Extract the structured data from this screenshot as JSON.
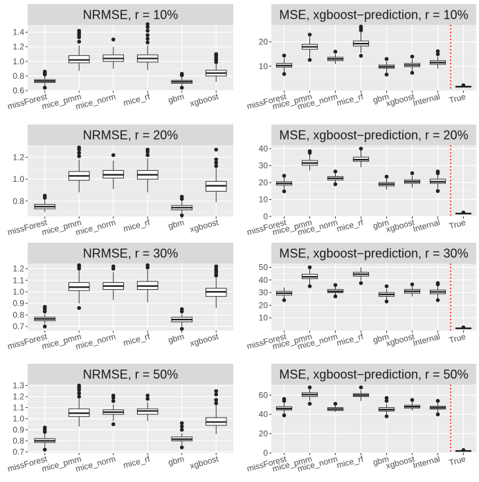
{
  "chart_data": [
    {
      "type": "boxplot",
      "title": "NRMSE, r = 10%",
      "categories": [
        "missForest",
        "mice_pmm",
        "mice_norm",
        "mice_rf",
        "gbm",
        "xgboost"
      ],
      "ylim": [
        0.6,
        1.5
      ],
      "yticks": [
        0.6,
        0.8,
        1.0,
        1.2,
        1.4
      ],
      "ytick_labels": [
        "0.6",
        "0.8",
        "1.0",
        "1.2",
        "1.4"
      ],
      "boxes": [
        {
          "q1": 0.71,
          "median": 0.73,
          "q3": 0.75,
          "lo": 0.66,
          "hi": 0.8,
          "outliers": [
            0.64,
            0.82,
            0.84,
            0.86
          ]
        },
        {
          "q1": 0.98,
          "median": 1.02,
          "q3": 1.08,
          "lo": 0.87,
          "hi": 1.22,
          "outliers": [
            1.27,
            1.33,
            1.36,
            1.39,
            1.42
          ]
        },
        {
          "q1": 1.0,
          "median": 1.04,
          "q3": 1.09,
          "lo": 0.9,
          "hi": 1.2,
          "outliers": [
            1.3
          ]
        },
        {
          "q1": 0.99,
          "median": 1.04,
          "q3": 1.09,
          "lo": 0.88,
          "hi": 1.22,
          "outliers": [
            1.26,
            1.31,
            1.36,
            1.42,
            1.47,
            1.51
          ]
        },
        {
          "q1": 0.7,
          "median": 0.72,
          "q3": 0.74,
          "lo": 0.67,
          "hi": 0.78,
          "outliers": [
            0.64,
            0.81,
            0.83
          ]
        },
        {
          "q1": 0.8,
          "median": 0.84,
          "q3": 0.88,
          "lo": 0.72,
          "hi": 0.97,
          "outliers": [
            0.99,
            1.02,
            1.05,
            1.08,
            1.1
          ]
        }
      ]
    },
    {
      "type": "boxplot",
      "title": "MSE, xgboost−prediction, r = 10%",
      "categories": [
        "missForest",
        "mice_pmm",
        "mice_norm",
        "mice_rf",
        "gbm",
        "xgboost",
        "Internal",
        "True"
      ],
      "ylim": [
        0,
        27
      ],
      "yticks": [
        10,
        20
      ],
      "ytick_labels": [
        "10",
        "20"
      ],
      "vline_after_category": "Internal",
      "boxes": [
        {
          "q1": 9.6,
          "median": 10.3,
          "q3": 11.2,
          "lo": 7.5,
          "hi": 13.3,
          "outliers": [
            6.8,
            14.4
          ]
        },
        {
          "q1": 17.0,
          "median": 18.0,
          "q3": 19.0,
          "lo": 13.5,
          "hi": 22.0,
          "outliers": [
            12.6,
            23.0
          ]
        },
        {
          "q1": 12.3,
          "median": 13.0,
          "q3": 13.7,
          "lo": 11.0,
          "hi": 15.0,
          "outliers": [
            16.0
          ]
        },
        {
          "q1": 18.3,
          "median": 19.3,
          "q3": 20.4,
          "lo": 15.5,
          "hi": 24.0,
          "outliers": [
            14.3,
            24.8,
            25.6,
            26.3
          ]
        },
        {
          "q1": 9.2,
          "median": 9.8,
          "q3": 10.5,
          "lo": 7.5,
          "hi": 12.0,
          "outliers": [
            6.6,
            13.0
          ]
        },
        {
          "q1": 9.8,
          "median": 10.5,
          "q3": 11.2,
          "lo": 8.0,
          "hi": 13.0,
          "outliers": [
            7.3,
            14.0
          ]
        },
        {
          "q1": 10.8,
          "median": 11.5,
          "q3": 12.3,
          "lo": 9.0,
          "hi": 14.0,
          "outliers": [
            15.0,
            16.2
          ]
        },
        {
          "q1": 1.5,
          "median": 1.6,
          "q3": 1.8,
          "lo": 1.4,
          "hi": 2.0,
          "outliers": [
            2.2
          ]
        }
      ]
    },
    {
      "type": "boxplot",
      "title": "NRMSE, r = 20%",
      "categories": [
        "missForest",
        "mice_pmm",
        "mice_norm",
        "mice_rf",
        "gbm",
        "xgboost"
      ],
      "ylim": [
        0.66,
        1.31
      ],
      "yticks": [
        0.8,
        1.0,
        1.2
      ],
      "ytick_labels": [
        "0.8",
        "1.0",
        "1.2"
      ],
      "boxes": [
        {
          "q1": 0.73,
          "median": 0.75,
          "q3": 0.77,
          "lo": 0.7,
          "hi": 0.81,
          "outliers": [
            0.83,
            0.85
          ]
        },
        {
          "q1": 0.99,
          "median": 1.03,
          "q3": 1.07,
          "lo": 0.88,
          "hi": 1.18,
          "outliers": [
            1.21,
            1.24,
            1.27,
            1.29
          ]
        },
        {
          "q1": 1.01,
          "median": 1.04,
          "q3": 1.08,
          "lo": 0.91,
          "hi": 1.17,
          "outliers": [
            1.22
          ]
        },
        {
          "q1": 1.0,
          "median": 1.04,
          "q3": 1.08,
          "lo": 0.88,
          "hi": 1.19,
          "outliers": [
            1.22,
            1.25,
            1.27
          ]
        },
        {
          "q1": 0.72,
          "median": 0.74,
          "q3": 0.76,
          "lo": 0.69,
          "hi": 0.8,
          "outliers": [
            0.67,
            0.82,
            0.84
          ]
        },
        {
          "q1": 0.89,
          "median": 0.94,
          "q3": 0.98,
          "lo": 0.79,
          "hi": 1.1,
          "outliers": [
            1.12,
            1.15,
            1.18,
            1.27
          ]
        }
      ]
    },
    {
      "type": "boxplot",
      "title": "MSE, xgboost−prediction, r = 20%",
      "categories": [
        "missForest",
        "mice_pmm",
        "mice_norm",
        "mice_rf",
        "gbm",
        "xgboost",
        "Internal",
        "True"
      ],
      "ylim": [
        0,
        42
      ],
      "yticks": [
        0,
        10,
        20,
        30,
        40
      ],
      "ytick_labels": [
        "0",
        "10",
        "20",
        "30",
        "40"
      ],
      "vline_after_category": "Internal",
      "boxes": [
        {
          "q1": 18.5,
          "median": 19.5,
          "q3": 20.5,
          "lo": 16.0,
          "hi": 23.0,
          "outliers": [
            14.8,
            24.0
          ]
        },
        {
          "q1": 30.2,
          "median": 31.5,
          "q3": 33.0,
          "lo": 27.0,
          "hi": 36.5,
          "outliers": [
            37.5,
            38.5
          ]
        },
        {
          "q1": 21.5,
          "median": 22.5,
          "q3": 23.5,
          "lo": 20.0,
          "hi": 25.5,
          "outliers": [
            19.0,
            26.5
          ]
        },
        {
          "q1": 32.5,
          "median": 33.5,
          "q3": 35.0,
          "lo": 29.0,
          "hi": 39.0,
          "outliers": [
            40.0
          ]
        },
        {
          "q1": 18.0,
          "median": 19.0,
          "q3": 20.0,
          "lo": 16.0,
          "hi": 22.5,
          "outliers": [
            23.5
          ]
        },
        {
          "q1": 19.5,
          "median": 20.5,
          "q3": 21.5,
          "lo": 17.0,
          "hi": 24.0,
          "outliers": [
            25.5
          ]
        },
        {
          "q1": 19.5,
          "median": 20.5,
          "q3": 22.0,
          "lo": 16.5,
          "hi": 24.5,
          "outliers": [
            15.0,
            25.5,
            26.5
          ]
        },
        {
          "q1": 1.5,
          "median": 1.7,
          "q3": 1.9,
          "lo": 1.3,
          "hi": 2.1,
          "outliers": [
            2.3
          ]
        }
      ]
    },
    {
      "type": "boxplot",
      "title": "NRMSE, r = 30%",
      "categories": [
        "missForest",
        "mice_pmm",
        "mice_norm",
        "mice_rf",
        "gbm",
        "xgboost"
      ],
      "ylim": [
        0.665,
        1.245
      ],
      "yticks": [
        0.7,
        0.8,
        0.9,
        1.0,
        1.1,
        1.2
      ],
      "ytick_labels": [
        "0.7",
        "0.8",
        "0.9",
        "1.0",
        "1.1",
        "1.2"
      ],
      "boxes": [
        {
          "q1": 0.75,
          "median": 0.765,
          "q3": 0.78,
          "lo": 0.72,
          "hi": 0.81,
          "outliers": [
            0.7,
            0.83,
            0.85,
            0.87
          ]
        },
        {
          "q1": 1.01,
          "median": 1.04,
          "q3": 1.08,
          "lo": 0.9,
          "hi": 1.18,
          "outliers": [
            0.86,
            1.2,
            1.22,
            1.23
          ]
        },
        {
          "q1": 1.02,
          "median": 1.05,
          "q3": 1.08,
          "lo": 0.93,
          "hi": 1.17,
          "outliers": [
            1.2,
            1.22
          ]
        },
        {
          "q1": 1.02,
          "median": 1.05,
          "q3": 1.09,
          "lo": 0.91,
          "hi": 1.19,
          "outliers": [
            1.21,
            1.23
          ]
        },
        {
          "q1": 0.74,
          "median": 0.76,
          "q3": 0.78,
          "lo": 0.7,
          "hi": 0.81,
          "outliers": [
            0.68,
            0.83,
            0.85
          ]
        },
        {
          "q1": 0.96,
          "median": 1.0,
          "q3": 1.03,
          "lo": 0.86,
          "hi": 1.12,
          "outliers": [
            1.14,
            1.16,
            1.18,
            1.2,
            1.22
          ]
        }
      ]
    },
    {
      "type": "boxplot",
      "title": "MSE, xgboost−prediction, r = 30%",
      "categories": [
        "missForest",
        "mice_pmm",
        "mice_norm",
        "mice_rf",
        "gbm",
        "xgboost",
        "Internal",
        "True"
      ],
      "ylim": [
        0,
        53
      ],
      "yticks": [
        10,
        20,
        30,
        40,
        50
      ],
      "ytick_labels": [
        "10",
        "20",
        "30",
        "40",
        "50"
      ],
      "vline_after_category": "Internal",
      "boxes": [
        {
          "q1": 28.0,
          "median": 29.5,
          "q3": 31.0,
          "lo": 25.5,
          "hi": 34.0,
          "outliers": [
            24.0
          ]
        },
        {
          "q1": 41.0,
          "median": 42.5,
          "q3": 44.5,
          "lo": 36.0,
          "hi": 49.0,
          "outliers": [
            35.0,
            50.0
          ]
        },
        {
          "q1": 30.0,
          "median": 31.0,
          "q3": 32.5,
          "lo": 28.0,
          "hi": 35.0,
          "outliers": [
            27.0,
            36.0
          ]
        },
        {
          "q1": 43.0,
          "median": 44.5,
          "q3": 46.0,
          "lo": 39.5,
          "hi": 50.0,
          "outliers": [
            37.5
          ]
        },
        {
          "q1": 27.0,
          "median": 28.5,
          "q3": 30.0,
          "lo": 24.5,
          "hi": 33.0,
          "outliers": [
            23.0,
            35.0
          ]
        },
        {
          "q1": 29.5,
          "median": 31.0,
          "q3": 32.5,
          "lo": 27.0,
          "hi": 35.5,
          "outliers": [
            36.5
          ]
        },
        {
          "q1": 29.0,
          "median": 30.5,
          "q3": 32.0,
          "lo": 25.5,
          "hi": 35.0,
          "outliers": [
            24.0,
            36.5,
            37.5
          ]
        },
        {
          "q1": 1.6,
          "median": 1.8,
          "q3": 2.0,
          "lo": 1.4,
          "hi": 2.3,
          "outliers": [
            2.5
          ]
        }
      ]
    },
    {
      "type": "boxplot",
      "title": "NRMSE, r = 50%",
      "categories": [
        "missForest",
        "mice_pmm",
        "mice_norm",
        "mice_rf",
        "gbm",
        "xgboost"
      ],
      "ylim": [
        0.69,
        1.31
      ],
      "yticks": [
        0.7,
        0.8,
        0.9,
        1.0,
        1.1,
        1.2,
        1.3
      ],
      "ytick_labels": [
        "0.7",
        "0.8",
        "0.9",
        "1.0",
        "1.1",
        "1.2",
        "1.3"
      ],
      "boxes": [
        {
          "q1": 0.785,
          "median": 0.8,
          "q3": 0.82,
          "lo": 0.74,
          "hi": 0.86,
          "outliers": [
            0.72,
            0.88,
            0.9,
            0.92
          ]
        },
        {
          "q1": 1.02,
          "median": 1.05,
          "q3": 1.09,
          "lo": 0.93,
          "hi": 1.18,
          "outliers": [
            1.2,
            1.23,
            1.26,
            1.28,
            1.3
          ]
        },
        {
          "q1": 1.04,
          "median": 1.06,
          "q3": 1.08,
          "lo": 0.98,
          "hi": 1.13,
          "outliers": [
            0.95,
            1.16,
            1.19,
            1.21
          ]
        },
        {
          "q1": 1.04,
          "median": 1.07,
          "q3": 1.09,
          "lo": 0.98,
          "hi": 1.15,
          "outliers": [
            1.18,
            1.21
          ]
        },
        {
          "q1": 0.8,
          "median": 0.815,
          "q3": 0.835,
          "lo": 0.76,
          "hi": 0.87,
          "outliers": [
            0.74,
            0.9,
            0.93,
            0.96
          ]
        },
        {
          "q1": 0.94,
          "median": 0.97,
          "q3": 1.01,
          "lo": 0.86,
          "hi": 1.12,
          "outliers": [
            1.14,
            1.17,
            1.22,
            1.25
          ]
        }
      ]
    },
    {
      "type": "boxplot",
      "title": "MSE, xgboost−prediction, r = 50%",
      "categories": [
        "missForest",
        "mice_pmm",
        "mice_norm",
        "mice_rf",
        "gbm",
        "xgboost",
        "Internal",
        "True"
      ],
      "ylim": [
        0,
        71
      ],
      "yticks": [
        0,
        20,
        40,
        60
      ],
      "ytick_labels": [
        "0",
        "20",
        "40",
        "60"
      ],
      "vline_after_category": "Internal",
      "boxes": [
        {
          "q1": 44.5,
          "median": 46.0,
          "q3": 48.0,
          "lo": 41.0,
          "hi": 52.0,
          "outliers": [
            39.0,
            54.0,
            56.0
          ]
        },
        {
          "q1": 58.5,
          "median": 60.5,
          "q3": 62.5,
          "lo": 54.0,
          "hi": 66.0,
          "outliers": [
            51.0,
            68.0
          ]
        },
        {
          "q1": 44.0,
          "median": 45.5,
          "q3": 47.0,
          "lo": 42.5,
          "hi": 49.0,
          "outliers": [
            51.0
          ]
        },
        {
          "q1": 58.5,
          "median": 60.0,
          "q3": 61.5,
          "lo": 54.0,
          "hi": 65.0,
          "outliers": [
            68.0
          ]
        },
        {
          "q1": 43.5,
          "median": 45.0,
          "q3": 47.0,
          "lo": 40.0,
          "hi": 51.0,
          "outliers": [
            38.0,
            54.0,
            57.0
          ]
        },
        {
          "q1": 46.5,
          "median": 48.0,
          "q3": 49.5,
          "lo": 44.0,
          "hi": 53.0,
          "outliers": [
            55.0
          ]
        },
        {
          "q1": 45.5,
          "median": 47.0,
          "q3": 48.5,
          "lo": 42.0,
          "hi": 52.0,
          "outliers": [
            40.0,
            54.0
          ]
        },
        {
          "q1": 1.8,
          "median": 2.1,
          "q3": 2.4,
          "lo": 1.5,
          "hi": 2.8,
          "outliers": [
            3.0
          ]
        }
      ]
    }
  ]
}
